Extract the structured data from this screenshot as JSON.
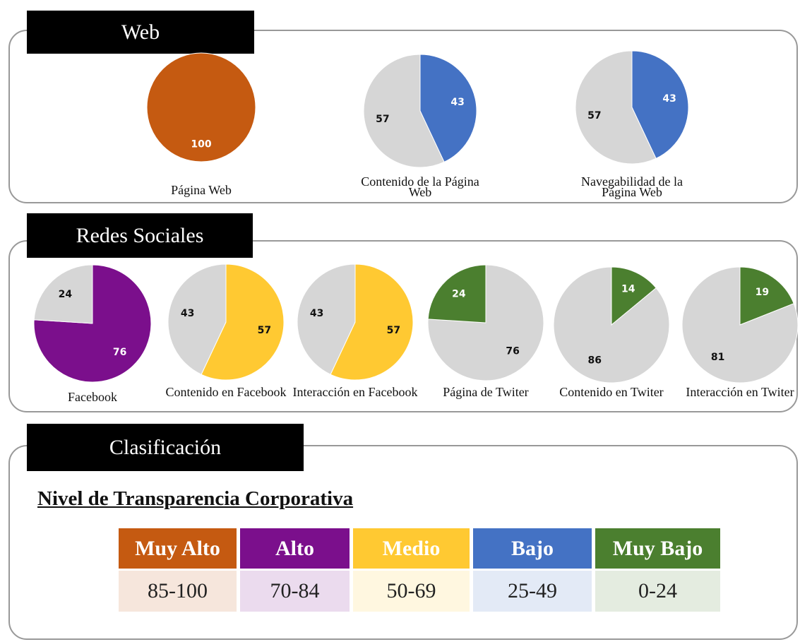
{
  "sections": [
    {
      "title": "Web"
    },
    {
      "title": "Redes Sociales"
    },
    {
      "title": "Clasificación"
    }
  ],
  "chart_data": [
    {
      "type": "pie",
      "title": "Página Web",
      "values": [
        100
      ],
      "colors": [
        "#c55a11"
      ]
    },
    {
      "type": "pie",
      "title": "Contenido de la Página Web",
      "values": [
        43,
        57
      ],
      "colors": [
        "#4472c4",
        "#d6d6d6"
      ]
    },
    {
      "type": "pie",
      "title": "Navegabilidad de la Página Web",
      "values": [
        43,
        57
      ],
      "colors": [
        "#4472c4",
        "#d6d6d6"
      ]
    },
    {
      "type": "pie",
      "title": "Facebook",
      "values": [
        76,
        24
      ],
      "colors": [
        "#7b0f8c",
        "#d6d6d6"
      ]
    },
    {
      "type": "pie",
      "title": "Contenido en Facebook",
      "values": [
        57,
        43
      ],
      "colors": [
        "#ffc932",
        "#d6d6d6"
      ]
    },
    {
      "type": "pie",
      "title": "Interacción en Facebook",
      "values": [
        57,
        43
      ],
      "colors": [
        "#ffc932",
        "#d6d6d6"
      ]
    },
    {
      "type": "pie",
      "title": "Página de Twiter",
      "values": [
        76,
        24
      ],
      "colors": [
        "#d6d6d6",
        "#4b7f2f"
      ]
    },
    {
      "type": "pie",
      "title": "Contenido en Twiter",
      "values": [
        14,
        86
      ],
      "colors": [
        "#4b7f2f",
        "#d6d6d6"
      ]
    },
    {
      "type": "pie",
      "title": "Interacción en Twiter",
      "values": [
        19,
        81
      ],
      "colors": [
        "#4b7f2f",
        "#d6d6d6"
      ]
    }
  ],
  "classification": {
    "title": "Nivel de Transparencia Corporativa",
    "levels": [
      {
        "name": "Muy Alto",
        "range": "85-100",
        "color": "#c55a11"
      },
      {
        "name": "Alto",
        "range": "70-84",
        "color": "#7b0f8c"
      },
      {
        "name": "Medio",
        "range": "50-69",
        "color": "#ffc932"
      },
      {
        "name": "Bajo",
        "range": "25-49",
        "color": "#4472c4"
      },
      {
        "name": "Muy Bajo",
        "range": "0-24",
        "color": "#4b7f2f"
      }
    ]
  }
}
